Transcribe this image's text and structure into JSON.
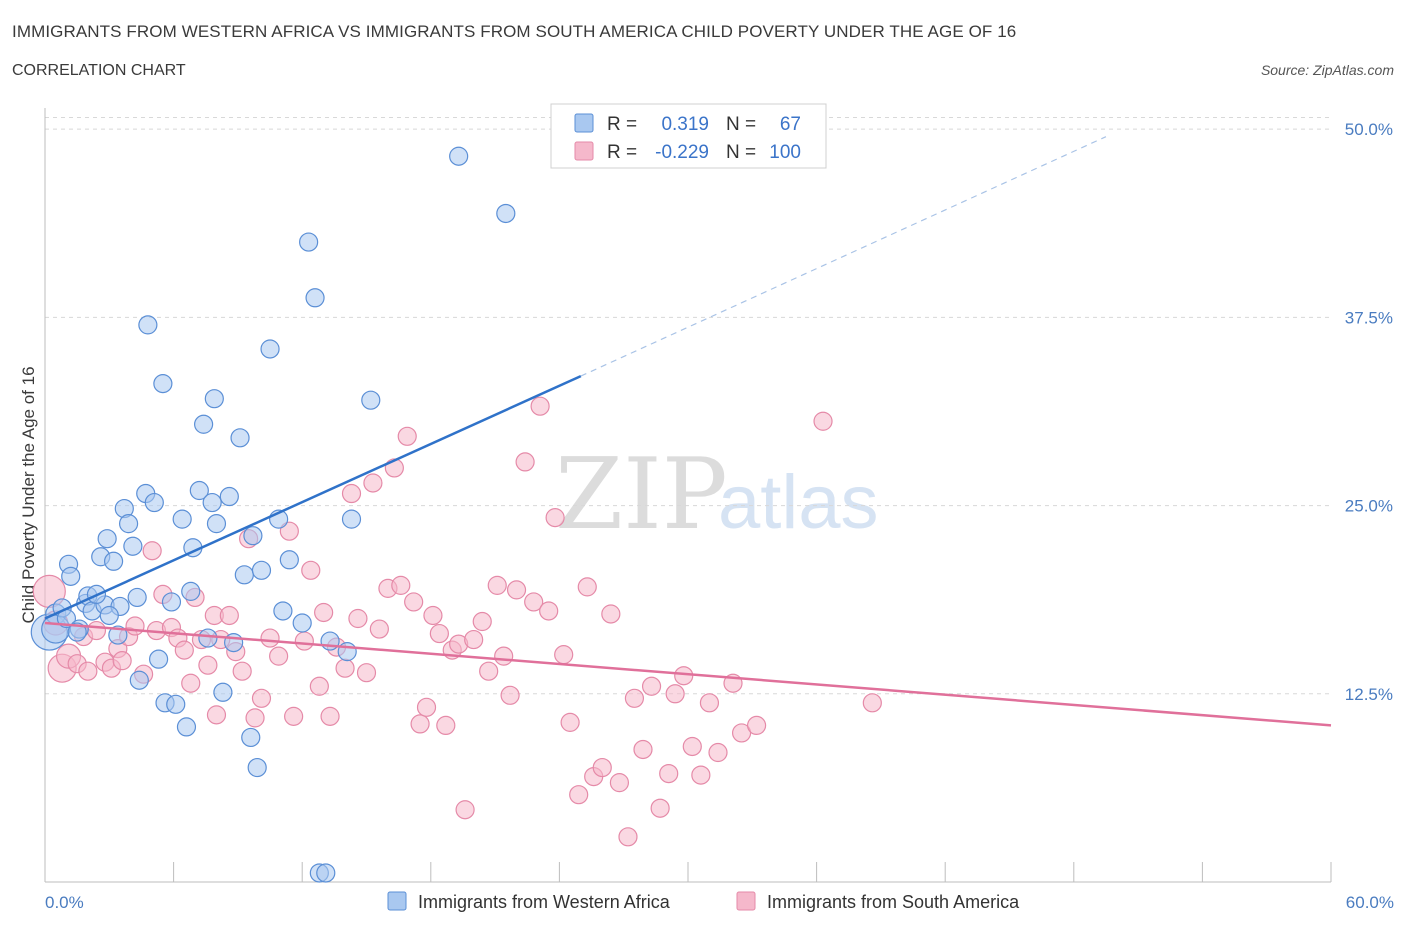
{
  "header": {
    "title": "IMMIGRANTS FROM WESTERN AFRICA VS IMMIGRANTS FROM SOUTH AMERICA CHILD POVERTY UNDER THE AGE OF 16",
    "subtitle": "CORRELATION CHART",
    "source": "Source: ZipAtlas.com"
  },
  "watermark": {
    "zip": "ZIP",
    "atlas": "atlas"
  },
  "colors": {
    "blue_fill": "#a9c8f0",
    "blue_stroke": "#5b8fd6",
    "blue_line": "#2f72c9",
    "pink_fill": "#f5b8cb",
    "pink_stroke": "#e58aa8",
    "pink_line": "#e0709a",
    "tick_text": "#4a7cc0",
    "grid": "#d8d8d8"
  },
  "stats": {
    "label_r": "R =",
    "label_n": "N =",
    "rows": [
      {
        "r": "0.319",
        "n": "67"
      },
      {
        "r": "-0.229",
        "n": "100"
      }
    ]
  },
  "chart_data": {
    "type": "scatter",
    "title": "IMMIGRANTS FROM WESTERN AFRICA VS IMMIGRANTS FROM SOUTH AMERICA CHILD POVERTY UNDER THE AGE OF 16",
    "xlabel": "",
    "ylabel": "Child Poverty Under the Age of 16",
    "xlim": [
      0,
      60
    ],
    "ylim": [
      0,
      52.5
    ],
    "x_tick_labels": [
      "0.0%",
      "60.0%"
    ],
    "y_ticks": [
      12.5,
      25,
      37.5,
      50
    ],
    "y_tick_labels": [
      "12.5%",
      "25.0%",
      "37.5%",
      "50.0%"
    ],
    "grid": "horizontal dashed",
    "legend_position": "bottom-center",
    "series": [
      {
        "name": "Immigrants from Western Africa",
        "color": "#a9c8f0",
        "trend": {
          "x": [
            0,
            25
          ],
          "y": [
            17.5,
            33.6
          ]
        },
        "trend_dashed": {
          "x": [
            25,
            49.5
          ],
          "y": [
            33.6,
            49.5
          ]
        },
        "points": [
          [
            0.2,
            16.6,
            18
          ],
          [
            0.5,
            17.8,
            10
          ],
          [
            0.5,
            16.8,
            14
          ],
          [
            0.8,
            18.2,
            9
          ],
          [
            1.0,
            17.5,
            9
          ],
          [
            1.1,
            21.1,
            9
          ],
          [
            1.2,
            20.3,
            9
          ],
          [
            1.6,
            16.8,
            9
          ],
          [
            1.9,
            18.5,
            9
          ],
          [
            2.0,
            19.0,
            9
          ],
          [
            2.2,
            18.0,
            9
          ],
          [
            2.6,
            21.6,
            9
          ],
          [
            2.8,
            18.4,
            9
          ],
          [
            2.9,
            22.8,
            9
          ],
          [
            3.2,
            21.3,
            9
          ],
          [
            3.4,
            16.4,
            9
          ],
          [
            3.5,
            18.3,
            9
          ],
          [
            3.7,
            24.8,
            9
          ],
          [
            3.9,
            23.8,
            9
          ],
          [
            4.1,
            22.3,
            9
          ],
          [
            4.3,
            18.9,
            9
          ],
          [
            4.4,
            13.4,
            9
          ],
          [
            4.7,
            25.8,
            9
          ],
          [
            4.8,
            37.0,
            9
          ],
          [
            5.1,
            25.2,
            9
          ],
          [
            5.3,
            14.8,
            9
          ],
          [
            5.5,
            33.1,
            9
          ],
          [
            5.6,
            11.9,
            9
          ],
          [
            5.9,
            18.6,
            9
          ],
          [
            6.1,
            11.8,
            9
          ],
          [
            6.4,
            24.1,
            9
          ],
          [
            6.6,
            10.3,
            9
          ],
          [
            6.8,
            19.3,
            9
          ],
          [
            6.9,
            22.2,
            9
          ],
          [
            7.2,
            26.0,
            9
          ],
          [
            7.4,
            30.4,
            9
          ],
          [
            7.6,
            16.2,
            9
          ],
          [
            7.8,
            25.2,
            9
          ],
          [
            7.9,
            32.1,
            9
          ],
          [
            8.0,
            23.8,
            9
          ],
          [
            8.3,
            12.6,
            9
          ],
          [
            8.6,
            25.6,
            9
          ],
          [
            8.8,
            15.9,
            9
          ],
          [
            9.1,
            29.5,
            9
          ],
          [
            9.3,
            20.4,
            9
          ],
          [
            9.6,
            9.6,
            9
          ],
          [
            9.7,
            23.0,
            9
          ],
          [
            9.9,
            7.6,
            9
          ],
          [
            10.1,
            20.7,
            9
          ],
          [
            10.5,
            35.4,
            9
          ],
          [
            10.9,
            24.1,
            9
          ],
          [
            11.1,
            18.0,
            9
          ],
          [
            11.4,
            21.4,
            9
          ],
          [
            12.0,
            17.2,
            9
          ],
          [
            12.3,
            42.5,
            9
          ],
          [
            12.6,
            38.8,
            9
          ],
          [
            12.8,
            0.6,
            9
          ],
          [
            13.1,
            0.6,
            9
          ],
          [
            13.3,
            16.0,
            9
          ],
          [
            14.1,
            15.3,
            9
          ],
          [
            14.3,
            24.1,
            9
          ],
          [
            15.2,
            32.0,
            9
          ],
          [
            19.3,
            48.2,
            9
          ],
          [
            21.5,
            44.4,
            9
          ],
          [
            3.0,
            17.7,
            9
          ],
          [
            1.5,
            16.6,
            9
          ],
          [
            2.4,
            19.1,
            9
          ]
        ]
      },
      {
        "name": "Immigrants from South America",
        "color": "#f5b8cb",
        "trend": {
          "x": [
            0,
            60
          ],
          "y": [
            17.2,
            10.4
          ]
        },
        "points": [
          [
            0.2,
            19.3,
            16
          ],
          [
            0.5,
            17.2,
            12
          ],
          [
            0.8,
            14.2,
            14
          ],
          [
            1.1,
            15.0,
            12
          ],
          [
            1.5,
            14.5,
            9
          ],
          [
            1.8,
            16.3,
            9
          ],
          [
            2.0,
            14.0,
            9
          ],
          [
            2.4,
            16.7,
            9
          ],
          [
            2.8,
            14.6,
            9
          ],
          [
            3.1,
            14.2,
            9
          ],
          [
            3.4,
            15.5,
            9
          ],
          [
            3.6,
            14.7,
            9
          ],
          [
            3.9,
            16.3,
            9
          ],
          [
            4.2,
            17.0,
            9
          ],
          [
            4.6,
            13.8,
            9
          ],
          [
            5.0,
            22.0,
            9
          ],
          [
            5.2,
            16.7,
            9
          ],
          [
            5.5,
            19.1,
            9
          ],
          [
            5.9,
            16.9,
            9
          ],
          [
            6.2,
            16.2,
            9
          ],
          [
            6.5,
            15.4,
            9
          ],
          [
            6.8,
            13.2,
            9
          ],
          [
            7.0,
            18.9,
            9
          ],
          [
            7.3,
            16.1,
            9
          ],
          [
            7.6,
            14.4,
            9
          ],
          [
            7.9,
            17.7,
            9
          ],
          [
            8.0,
            11.1,
            9
          ],
          [
            8.2,
            16.1,
            9
          ],
          [
            8.6,
            17.7,
            9
          ],
          [
            8.9,
            15.3,
            9
          ],
          [
            9.2,
            14.0,
            9
          ],
          [
            9.5,
            22.8,
            9
          ],
          [
            9.8,
            10.9,
            9
          ],
          [
            10.1,
            12.2,
            9
          ],
          [
            10.5,
            16.2,
            9
          ],
          [
            10.9,
            15.0,
            9
          ],
          [
            11.4,
            23.3,
            9
          ],
          [
            11.6,
            11.0,
            9
          ],
          [
            12.1,
            16.0,
            9
          ],
          [
            12.4,
            20.7,
            9
          ],
          [
            12.8,
            13.0,
            9
          ],
          [
            13.0,
            17.9,
            9
          ],
          [
            13.3,
            11.0,
            9
          ],
          [
            13.6,
            15.6,
            9
          ],
          [
            14.0,
            14.2,
            9
          ],
          [
            14.3,
            25.8,
            9
          ],
          [
            14.6,
            17.5,
            9
          ],
          [
            15.0,
            13.9,
            9
          ],
          [
            15.3,
            26.5,
            9
          ],
          [
            15.6,
            16.8,
            9
          ],
          [
            16.0,
            19.5,
            9
          ],
          [
            16.3,
            27.5,
            9
          ],
          [
            16.6,
            19.7,
            9
          ],
          [
            16.9,
            29.6,
            9
          ],
          [
            17.2,
            18.6,
            9
          ],
          [
            17.5,
            10.5,
            9
          ],
          [
            17.8,
            11.6,
            9
          ],
          [
            18.1,
            17.7,
            9
          ],
          [
            18.4,
            16.5,
            9
          ],
          [
            18.7,
            10.4,
            9
          ],
          [
            19.0,
            15.4,
            9
          ],
          [
            19.3,
            15.8,
            9
          ],
          [
            19.6,
            4.8,
            9
          ],
          [
            20.0,
            16.1,
            9
          ],
          [
            20.4,
            17.3,
            9
          ],
          [
            20.7,
            14.0,
            9
          ],
          [
            21.1,
            19.7,
            9
          ],
          [
            21.4,
            15.0,
            9
          ],
          [
            21.7,
            12.4,
            9
          ],
          [
            22.0,
            19.4,
            9
          ],
          [
            22.4,
            27.9,
            9
          ],
          [
            22.8,
            18.6,
            9
          ],
          [
            23.1,
            31.6,
            9
          ],
          [
            23.5,
            18.0,
            9
          ],
          [
            23.8,
            24.2,
            9
          ],
          [
            24.2,
            15.1,
            9
          ],
          [
            24.5,
            10.6,
            9
          ],
          [
            24.9,
            5.8,
            9
          ],
          [
            25.3,
            19.6,
            9
          ],
          [
            25.6,
            7.0,
            9
          ],
          [
            26.0,
            7.6,
            9
          ],
          [
            26.4,
            17.8,
            9
          ],
          [
            26.8,
            6.6,
            9
          ],
          [
            27.2,
            3.0,
            9
          ],
          [
            27.5,
            12.2,
            9
          ],
          [
            27.9,
            8.8,
            9
          ],
          [
            28.3,
            13.0,
            9
          ],
          [
            28.7,
            4.9,
            9
          ],
          [
            29.1,
            7.2,
            9
          ],
          [
            29.4,
            12.5,
            9
          ],
          [
            29.8,
            13.7,
            9
          ],
          [
            30.2,
            9.0,
            9
          ],
          [
            30.6,
            7.1,
            9
          ],
          [
            31.0,
            11.9,
            9
          ],
          [
            31.4,
            8.6,
            9
          ],
          [
            32.1,
            13.2,
            9
          ],
          [
            32.5,
            9.9,
            9
          ],
          [
            33.2,
            10.4,
            9
          ],
          [
            36.3,
            30.6,
            9
          ],
          [
            38.6,
            11.9,
            9
          ]
        ]
      }
    ]
  },
  "legend": {
    "items": [
      {
        "label": "Immigrants from Western Africa"
      },
      {
        "label": "Immigrants from South America"
      }
    ]
  }
}
